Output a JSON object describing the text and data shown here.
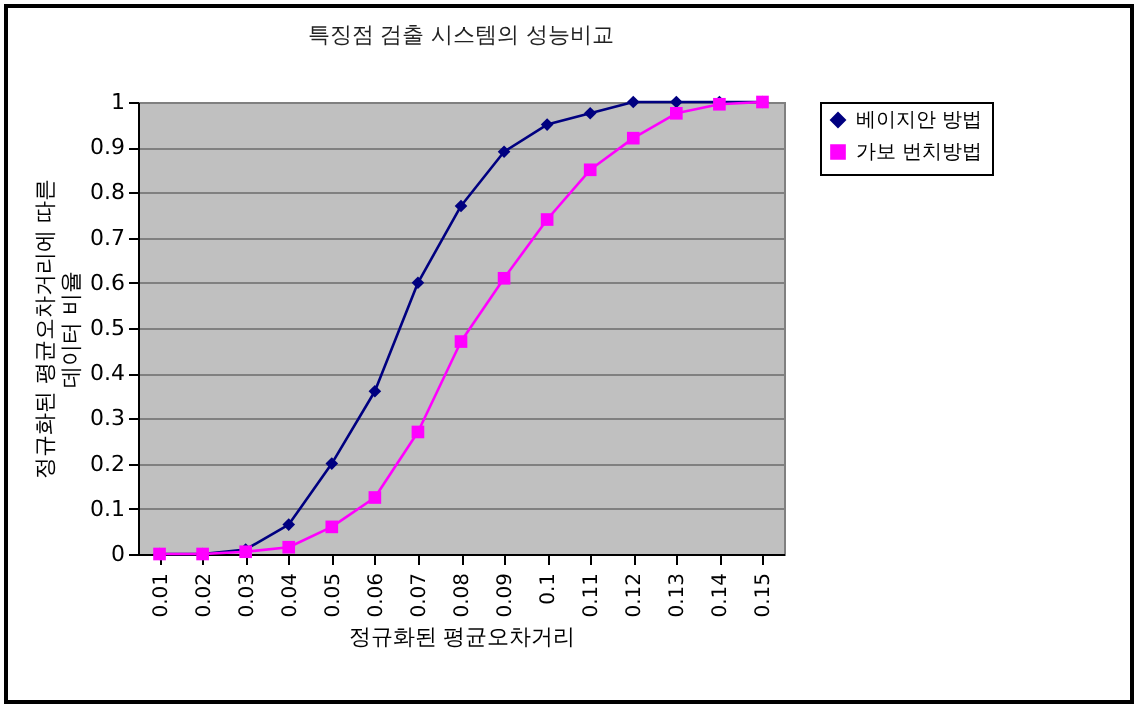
{
  "chart_data": {
    "type": "line",
    "title": "특징점 검출 시스템의 성능비교",
    "xlabel": "정규화된 평균오차거리",
    "ylabel": "정규화된 평균오차거리에 따른\n데이터 비율",
    "categories": [
      "0.01",
      "0.02",
      "0.03",
      "0.04",
      "0.05",
      "0.06",
      "0.07",
      "0.08",
      "0.09",
      "0.1",
      "0.11",
      "0.12",
      "0.13",
      "0.14",
      "0.15"
    ],
    "series": [
      {
        "name": "베이지안 방법",
        "color": "#000080",
        "marker": "diamond",
        "values": [
          0,
          0,
          0.01,
          0.065,
          0.2,
          0.36,
          0.6,
          0.77,
          0.89,
          0.95,
          0.975,
          1,
          1,
          1,
          1
        ]
      },
      {
        "name": "가보 번치방법",
        "color": "#ff00ff",
        "marker": "square",
        "values": [
          0,
          0,
          0.005,
          0.015,
          0.06,
          0.125,
          0.27,
          0.47,
          0.61,
          0.74,
          0.85,
          0.92,
          0.975,
          0.995,
          1
        ]
      }
    ],
    "ylim": [
      0,
      1
    ],
    "yticks": [
      0,
      0.1,
      0.2,
      0.3,
      0.4,
      0.5,
      0.6,
      0.7,
      0.8,
      0.9,
      1
    ],
    "grid": "y",
    "legend": "right",
    "line_style": "solid"
  }
}
